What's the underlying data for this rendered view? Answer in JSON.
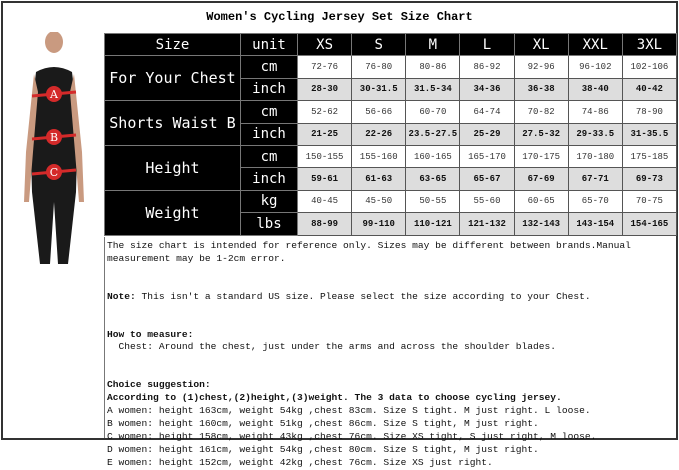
{
  "title": "Women's Cycling Jersey Set Size Chart",
  "figure": {
    "markers": [
      "A",
      "B",
      "C"
    ],
    "marker_color": "#d42a2a"
  },
  "table": {
    "header": [
      "Size",
      "unit",
      "XS",
      "S",
      "M",
      "L",
      "XL",
      "XXL",
      "3XL"
    ],
    "groups": [
      {
        "label": "For Your Chest",
        "rows": [
          {
            "unit": "cm",
            "values": [
              "72-76",
              "76-80",
              "80-86",
              "86-92",
              "92-96",
              "96-102",
              "102-106"
            ]
          },
          {
            "unit": "inch",
            "values": [
              "28-30",
              "30-31.5",
              "31.5-34",
              "34-36",
              "36-38",
              "38-40",
              "40-42"
            ]
          }
        ]
      },
      {
        "label": "Shorts Waist B",
        "rows": [
          {
            "unit": "cm",
            "values": [
              "52-62",
              "56-66",
              "60-70",
              "64-74",
              "70-82",
              "74-86",
              "78-90"
            ]
          },
          {
            "unit": "inch",
            "values": [
              "21-25",
              "22-26",
              "23.5-27.5",
              "25-29",
              "27.5-32",
              "29-33.5",
              "31-35.5"
            ]
          }
        ]
      },
      {
        "label": "Height",
        "rows": [
          {
            "unit": "cm",
            "values": [
              "150-155",
              "155-160",
              "160-165",
              "165-170",
              "170-175",
              "170-180",
              "175-185"
            ]
          },
          {
            "unit": "inch",
            "values": [
              "59-61",
              "61-63",
              "63-65",
              "65-67",
              "67-69",
              "67-71",
              "69-73"
            ]
          }
        ]
      },
      {
        "label": "Weight",
        "rows": [
          {
            "unit": "kg",
            "values": [
              "40-45",
              "45-50",
              "50-55",
              "55-60",
              "60-65",
              "65-70",
              "70-75"
            ]
          },
          {
            "unit": "lbs",
            "values": [
              "88-99",
              "99-110",
              "110-121",
              "121-132",
              "132-143",
              "143-154",
              "154-165"
            ]
          }
        ]
      }
    ]
  },
  "notes": {
    "disclaimer": "The size chart is intended for reference only. Sizes may be different between brands.Manual measurement may be 1-2cm error.",
    "note_label": "Note:",
    "note_text": " This isn't a standard US size. Please select the size according to your Chest.",
    "how_label": "How to measure:",
    "how_text": "  Chest: Around the chest, just under the arms and across the shoulder blades.",
    "choice_label": "Choice suggestion:",
    "choice_rule": "According to (1)chest,(2)height,(3)weight. The 3 data to choose cycling jersey.",
    "examples": [
      "A women: height 163cm, weight 54kg ,chest 83cm. Size S tight. M just right. L loose.",
      "B women: height 160cm, weight 51kg ,chest 86cm. Size S tight, M just right.",
      "C women: height 158cm, weight 43kg ,chest 76cm. Size XS tight, S just right, M loose.",
      "D women: height 161cm, weight 54kg ,chest 80cm. Size S tight, M just right.",
      "E women: height 152cm, weight 42kg ,chest 76cm. Size XS just right."
    ]
  }
}
